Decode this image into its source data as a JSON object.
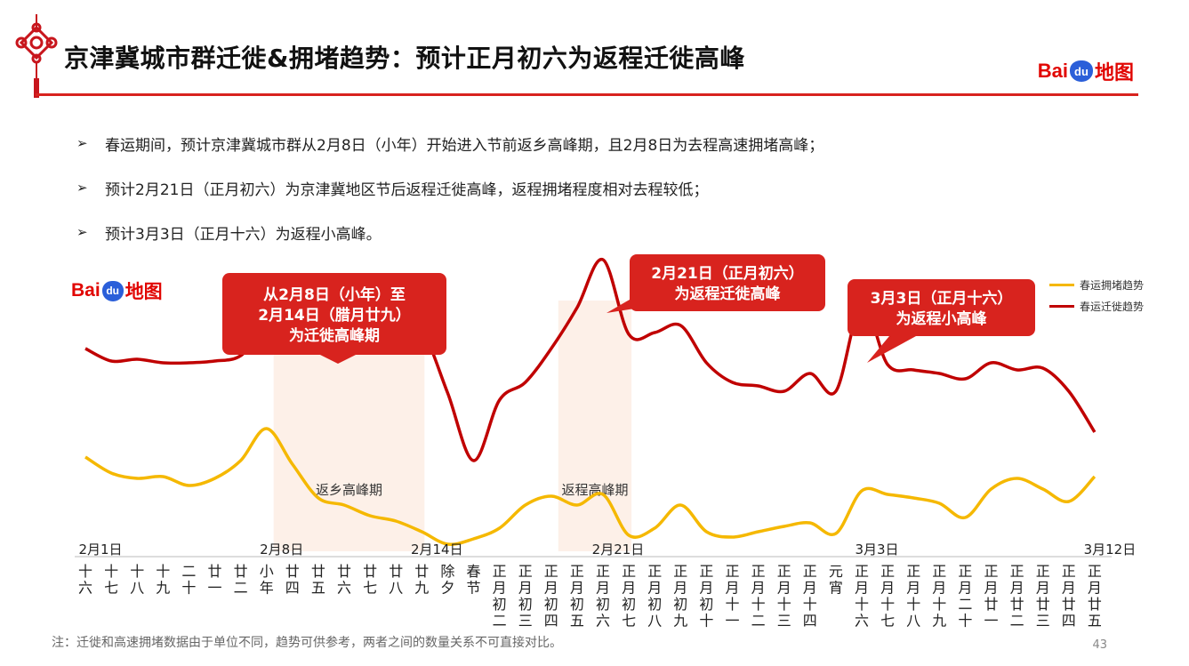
{
  "header": {
    "title": "京津冀城市群迁徙&拥堵趋势：预计正月初六为返程迁徙高峰",
    "logo": {
      "bai": "Bai",
      "du": "du",
      "map": "地图"
    }
  },
  "bullets": [
    "春运期间，预计京津冀城市群从2月8日（小年）开始进入节前返乡高峰期，且2月8日为去程高速拥堵高峰；",
    "预计2月21日（正月初六）为京津冀地区节后返程迁徙高峰，返程拥堵程度相对去程较低；",
    "预计3月3日（正月十六）为返程小高峰。"
  ],
  "bullet_marker": "➢",
  "chart_logo": {
    "bai": "Bai",
    "du": "du",
    "map": "地图"
  },
  "chart_data": {
    "type": "line",
    "categories": [
      "十六",
      "十七",
      "十八",
      "十九",
      "二十",
      "廿一",
      "廿二",
      "小年",
      "廿四",
      "廿五",
      "廿六",
      "廿七",
      "廿八",
      "廿九",
      "除夕",
      "春节",
      "正月初二",
      "正月初三",
      "正月初四",
      "正月初五",
      "正月初六",
      "正月初七",
      "正月初八",
      "正月初九",
      "正月初十",
      "正月十一",
      "正月十二",
      "正月十三",
      "正月十四",
      "元宵",
      "正月十六",
      "正月十七",
      "正月十八",
      "正月十九",
      "正月二十",
      "正月廿一",
      "正月廿二",
      "正月廿三",
      "正月廿四",
      "正月廿五"
    ],
    "date_labels": [
      {
        "index": 0,
        "text": "2月1日"
      },
      {
        "index": 7,
        "text": "2月8日"
      },
      {
        "index": 13,
        "text": "2月14日"
      },
      {
        "index": 20,
        "text": "2月21日"
      },
      {
        "index": 30,
        "text": "3月3日"
      },
      {
        "index": 39,
        "text": "3月12日"
      }
    ],
    "series": [
      {
        "name": "春运拥堵趋势",
        "color": "#f5b800",
        "values": [
          54,
          45,
          42,
          43,
          38,
          42,
          52,
          70,
          50,
          31,
          27,
          21,
          18,
          12,
          5,
          8,
          14,
          27,
          32,
          27,
          33,
          10,
          14,
          27,
          12,
          9,
          12,
          15,
          17,
          11,
          35,
          33,
          31,
          28,
          20,
          36,
          42,
          36,
          29,
          43
        ]
      },
      {
        "name": "春运迁徙趋势",
        "color": "#c00000",
        "values": [
          115,
          108,
          109,
          107,
          107,
          108,
          111,
          127,
          125,
          126,
          132,
          134,
          136,
          126,
          90,
          52,
          86,
          96,
          115,
          138,
          165,
          123,
          124,
          128,
          107,
          96,
          94,
          91,
          101,
          91,
          140,
          106,
          103,
          101,
          98,
          107,
          103,
          104,
          91,
          68
        ]
      }
    ],
    "highlight_bands": [
      {
        "start_index": 7,
        "end_index": 13,
        "label": "返乡高峰期"
      },
      {
        "start_index": 18,
        "end_index": 21,
        "label": "返程高峰期"
      }
    ],
    "callouts": [
      {
        "lines": [
          "从2月8日（小年）至",
          "2月14日（腊月廿九）",
          "为迁徙高峰期"
        ]
      },
      {
        "lines": [
          "2月21日（正月初六）",
          "为返程迁徙高峰"
        ]
      },
      {
        "lines": [
          "3月3日（正月十六）",
          "为返程小高峰"
        ]
      }
    ],
    "legend_position": "top-right",
    "grid": false,
    "xlabel": "",
    "ylabel": ""
  },
  "note": "注：迁徙和高速拥堵数据由于单位不同，趋势可供参考，两者之间的数量关系不可直接对比。",
  "page_number": "43",
  "colors": {
    "accent": "#d8231e",
    "callout": "#d8231e",
    "band": "#fdf0e8",
    "baidu_blue": "#2b5fd9"
  }
}
